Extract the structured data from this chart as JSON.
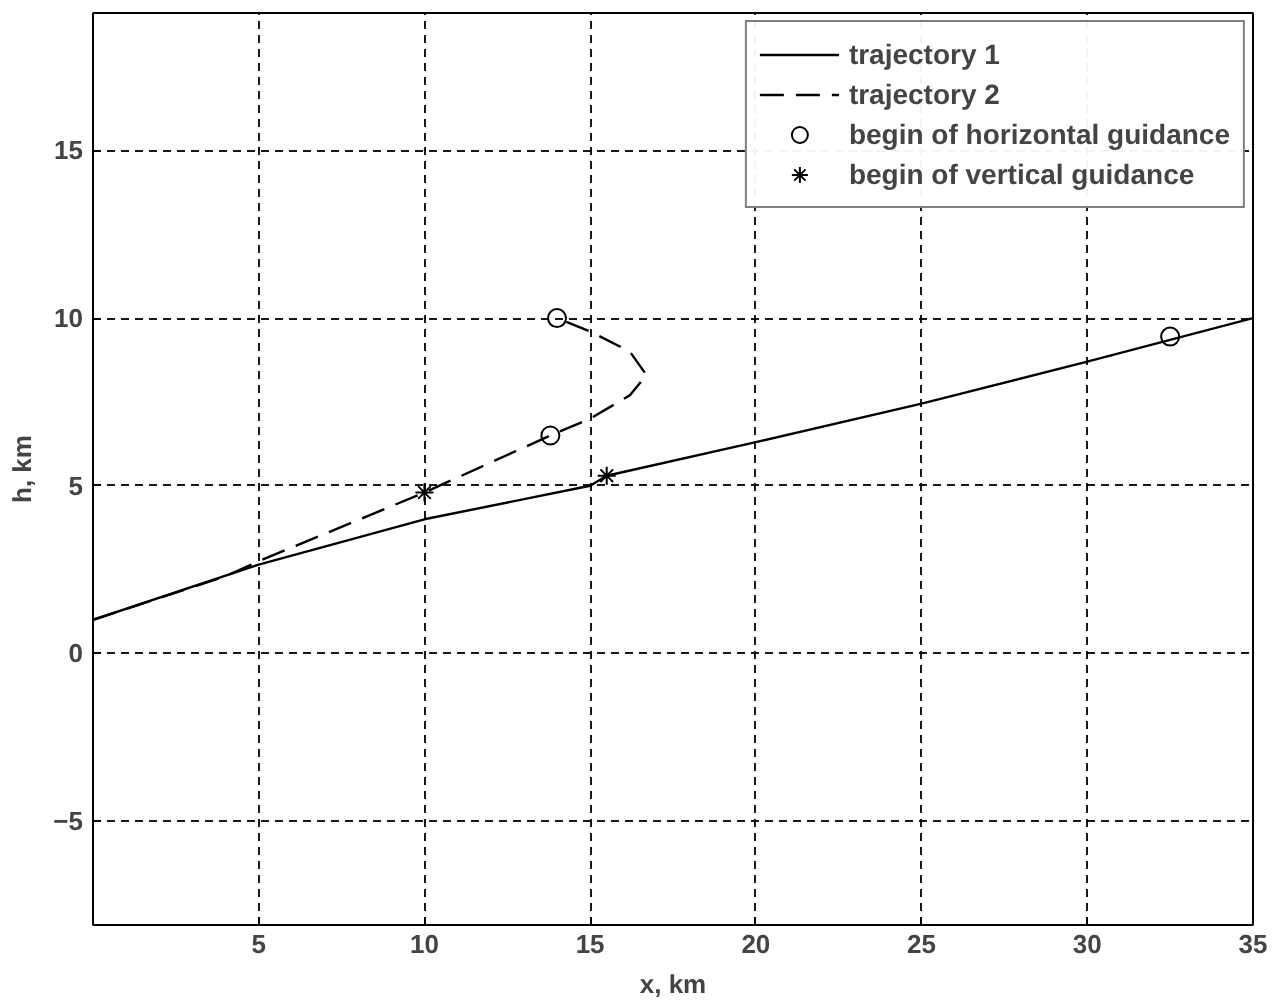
{
  "chart_data": {
    "type": "line",
    "xlabel": "x, km",
    "ylabel": "h, km",
    "xlim": [
      0,
      35
    ],
    "ylim": [
      -8.1,
      19.1
    ],
    "xticks": [
      5,
      10,
      15,
      20,
      25,
      30,
      35
    ],
    "yticks": [
      -5,
      0,
      5,
      10,
      15
    ],
    "grid": true,
    "legend": "top right",
    "series": [
      {
        "name": "trajectory 1",
        "line_style": "solid",
        "color": "#000000",
        "x": [
          0,
          5,
          10,
          15,
          15.5,
          20,
          25,
          30,
          35
        ],
        "values": [
          1,
          2.65,
          4.0,
          5.0,
          5.3,
          6.3,
          7.45,
          8.7,
          10
        ]
      },
      {
        "name": "trajectory 2",
        "line_style": "dashed",
        "color": "#000000",
        "x": [
          0,
          4,
          5,
          10,
          13.8,
          15,
          16.2,
          16.7,
          16.2,
          15,
          14
        ],
        "values": [
          1,
          2.3,
          2.75,
          4.8,
          6.5,
          7.0,
          7.7,
          8.3,
          9.0,
          9.6,
          10
        ]
      },
      {
        "name": "begin of horizontal guidance",
        "type": "scatter",
        "marker": "circle",
        "color": "#000000",
        "x": [
          14,
          13.8,
          32.5
        ],
        "values": [
          10,
          6.5,
          9.45
        ]
      },
      {
        "name": "begin of vertical guidance",
        "type": "scatter",
        "marker": "cross",
        "color": "#000000",
        "x": [
          10,
          15.5
        ],
        "values": [
          4.8,
          5.3
        ]
      }
    ]
  }
}
